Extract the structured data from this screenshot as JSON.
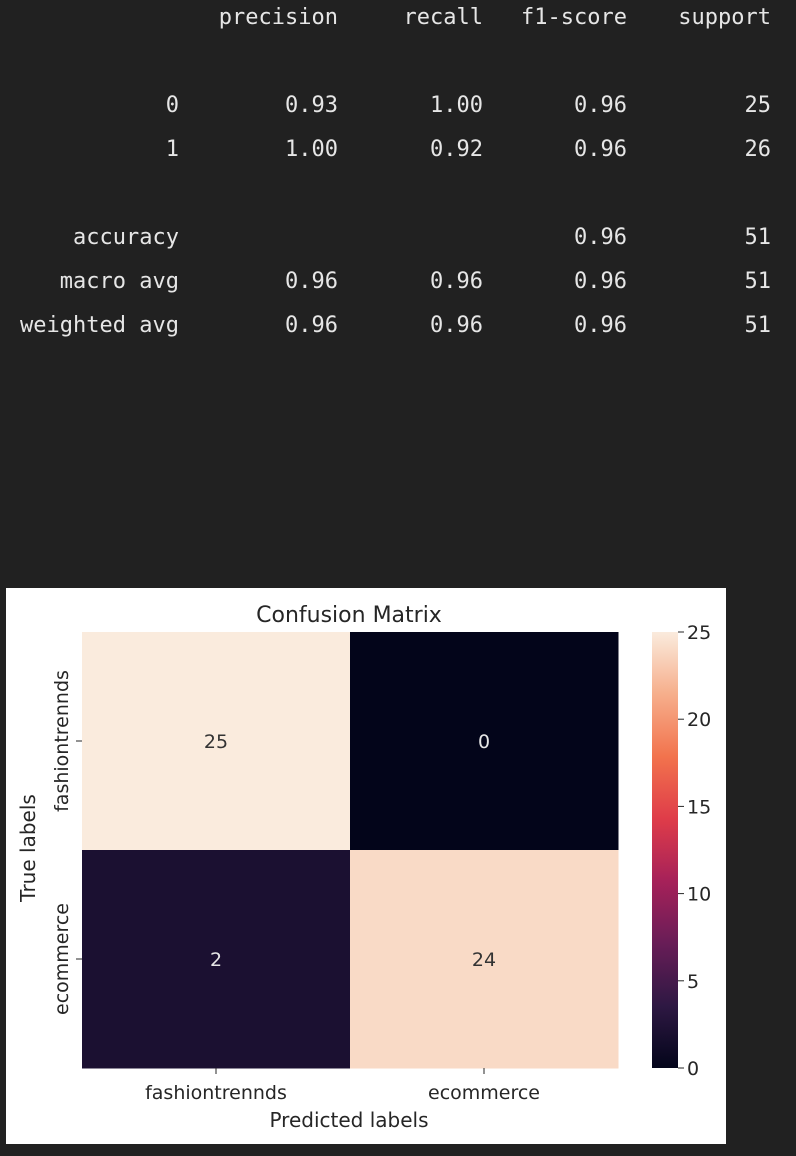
{
  "report": {
    "headers": [
      "precision",
      "recall",
      "f1-score",
      "support"
    ],
    "rows": [
      {
        "label": "0",
        "precision": "0.93",
        "recall": "1.00",
        "f1": "0.96",
        "support": "25"
      },
      {
        "label": "1",
        "precision": "1.00",
        "recall": "0.92",
        "f1": "0.96",
        "support": "26"
      },
      {
        "label": "accuracy",
        "precision": "",
        "recall": "",
        "f1": "0.96",
        "support": "51"
      },
      {
        "label": "macro avg",
        "precision": "0.96",
        "recall": "0.96",
        "f1": "0.96",
        "support": "51"
      },
      {
        "label": "weighted avg",
        "precision": "0.96",
        "recall": "0.96",
        "f1": "0.96",
        "support": "51"
      }
    ]
  },
  "chart_data": {
    "type": "heatmap",
    "title": "Confusion Matrix",
    "xlabel": "Predicted labels",
    "ylabel": "True labels",
    "x_categories": [
      "fashiontrennds",
      "ecommerce"
    ],
    "y_categories": [
      "fashiontrennds",
      "ecommerce"
    ],
    "values": [
      [
        25,
        0
      ],
      [
        2,
        24
      ]
    ],
    "colorbar": {
      "min": 0,
      "max": 25,
      "ticks": [
        0,
        5,
        10,
        15,
        20,
        25
      ]
    },
    "colormap": [
      "#03051a",
      "#2e1843",
      "#681d57",
      "#a62159",
      "#df3c49",
      "#f2734d",
      "#f6ae8b",
      "#faebdd"
    ],
    "annotation_colors": {
      "light": "#333333",
      "dark": "#e6e6e6"
    }
  }
}
